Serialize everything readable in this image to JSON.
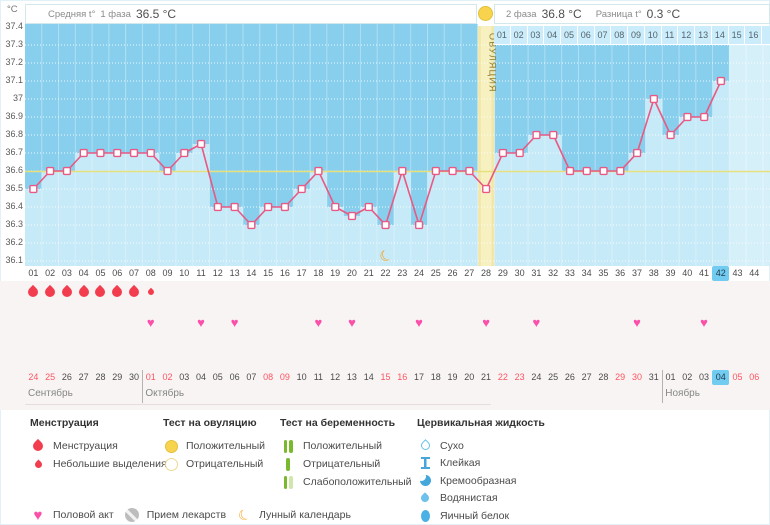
{
  "header": {
    "unit": "°C",
    "avg_label": "Средняя t°",
    "phase1_label": "1 фаза",
    "phase1_value": "36.5 °C",
    "phase2_label": "2 фаза",
    "phase2_value": "36.8 °C",
    "diff_label": "Разница t°",
    "diff_value": "0.3 °C",
    "ovulation_label": "ОВУЛЯЦИЯ"
  },
  "chart_data": {
    "type": "line",
    "y_axis": {
      "min": 36.1,
      "max": 37.4,
      "step": 0.1,
      "ticks": [
        "37.4",
        "37.3",
        "37.2",
        "37.1",
        "37",
        "36.9",
        "36.8",
        "36.7",
        "36.6",
        "36.5",
        "36.4",
        "36.3",
        "36.2",
        "36.1"
      ]
    },
    "cycle_days": 44,
    "current_day": 42,
    "coverline_c": 36.6,
    "ovulation_day": 28,
    "moon_day": 22,
    "temperatures_c": [
      36.5,
      36.6,
      36.6,
      36.7,
      36.7,
      36.7,
      36.7,
      36.7,
      36.6,
      36.7,
      36.75,
      36.4,
      36.4,
      36.3,
      36.4,
      36.4,
      36.5,
      36.6,
      36.4,
      36.35,
      36.4,
      36.3,
      36.6,
      36.3,
      36.6,
      36.6,
      36.6,
      36.5,
      36.7,
      36.7,
      36.8,
      36.8,
      36.6,
      36.6,
      36.6,
      36.6,
      36.7,
      37.0,
      36.8,
      36.9,
      36.9,
      37.1,
      null,
      null
    ],
    "phase2_day_labels": [
      "01",
      "02",
      "03",
      "04",
      "05",
      "06",
      "07",
      "08",
      "09",
      "10",
      "11",
      "12",
      "13",
      "14",
      "15",
      "16"
    ],
    "menstruation_days": [
      1,
      2,
      3,
      4,
      5,
      6,
      7
    ],
    "spotting_days": [
      8
    ],
    "intercourse_days": [
      8,
      11,
      13,
      18,
      20,
      24,
      28,
      31,
      37,
      41
    ],
    "calendar": {
      "months": [
        {
          "name": "Сентябрь",
          "days": [
            24,
            25,
            26,
            27,
            28,
            29,
            30
          ],
          "weekend": [
            24,
            25
          ]
        },
        {
          "name": "Октябрь",
          "days": [
            1,
            2,
            3,
            4,
            5,
            6,
            7,
            8,
            9,
            10,
            11,
            12,
            13,
            14,
            15,
            16,
            17,
            18,
            19,
            20,
            21,
            22,
            23,
            24,
            25,
            26,
            27,
            28,
            29,
            30,
            31
          ],
          "weekend": [
            1,
            2,
            8,
            9,
            15,
            16,
            22,
            23,
            29,
            30
          ]
        },
        {
          "name": "Ноябрь",
          "days": [
            1,
            2,
            3,
            4,
            5,
            6
          ],
          "weekend": [
            5,
            6
          ],
          "today": 4
        }
      ]
    }
  },
  "colors": {
    "chart_bg_dark": "#87cfed",
    "chart_fill_light": "#c7eaf8",
    "chart_future": "#d6f0fa",
    "ovulation_band": "#f1e7a8",
    "ovulation_band_inner": "#f7f0c0",
    "ovulation_text": "#8e7e33",
    "coverline": "#e8e07c",
    "temp_line": "#e85983",
    "highlight_day": "#72ccf2",
    "menstruation": "#f23d4e",
    "intercourse": "#fc4fa9",
    "moon": "#f6a21f",
    "weekend_date": "#fc5560",
    "phase2_cells_bg": "#cbecfa"
  },
  "legend": {
    "menstruation": {
      "title": "Менструация",
      "items": [
        {
          "icon": "drop-big",
          "label": "Менструация"
        },
        {
          "icon": "drop-small",
          "label": "Небольшие выделения"
        }
      ]
    },
    "ovulation_test": {
      "title": "Тест на овуляцию",
      "items": [
        {
          "icon": "circle-filled",
          "label": "Положительный"
        },
        {
          "icon": "circle-outline",
          "label": "Отрицательный"
        }
      ]
    },
    "pregnancy_test": {
      "title": "Тест на беременность",
      "items": [
        {
          "icon": "bars-2",
          "label": "Положительный"
        },
        {
          "icon": "bars-1",
          "label": "Отрицательный"
        },
        {
          "icon": "bars-weak",
          "label": "Слабоположительный"
        }
      ]
    },
    "cervical_fluid": {
      "title": "Цервикальная жидкость",
      "items": [
        {
          "icon": "cf-dry",
          "label": "Сухо"
        },
        {
          "icon": "cf-sticky",
          "label": "Клейкая"
        },
        {
          "icon": "cf-creamy",
          "label": "Кремообразная"
        },
        {
          "icon": "cf-watery",
          "label": "Водянистая"
        },
        {
          "icon": "cf-eggwhite",
          "label": "Яичный белок"
        }
      ]
    },
    "extra": [
      {
        "icon": "heart",
        "label": "Половой акт"
      },
      {
        "icon": "medication",
        "label": "Прием лекарств"
      },
      {
        "icon": "moon",
        "label": "Лунный календарь"
      }
    ]
  }
}
